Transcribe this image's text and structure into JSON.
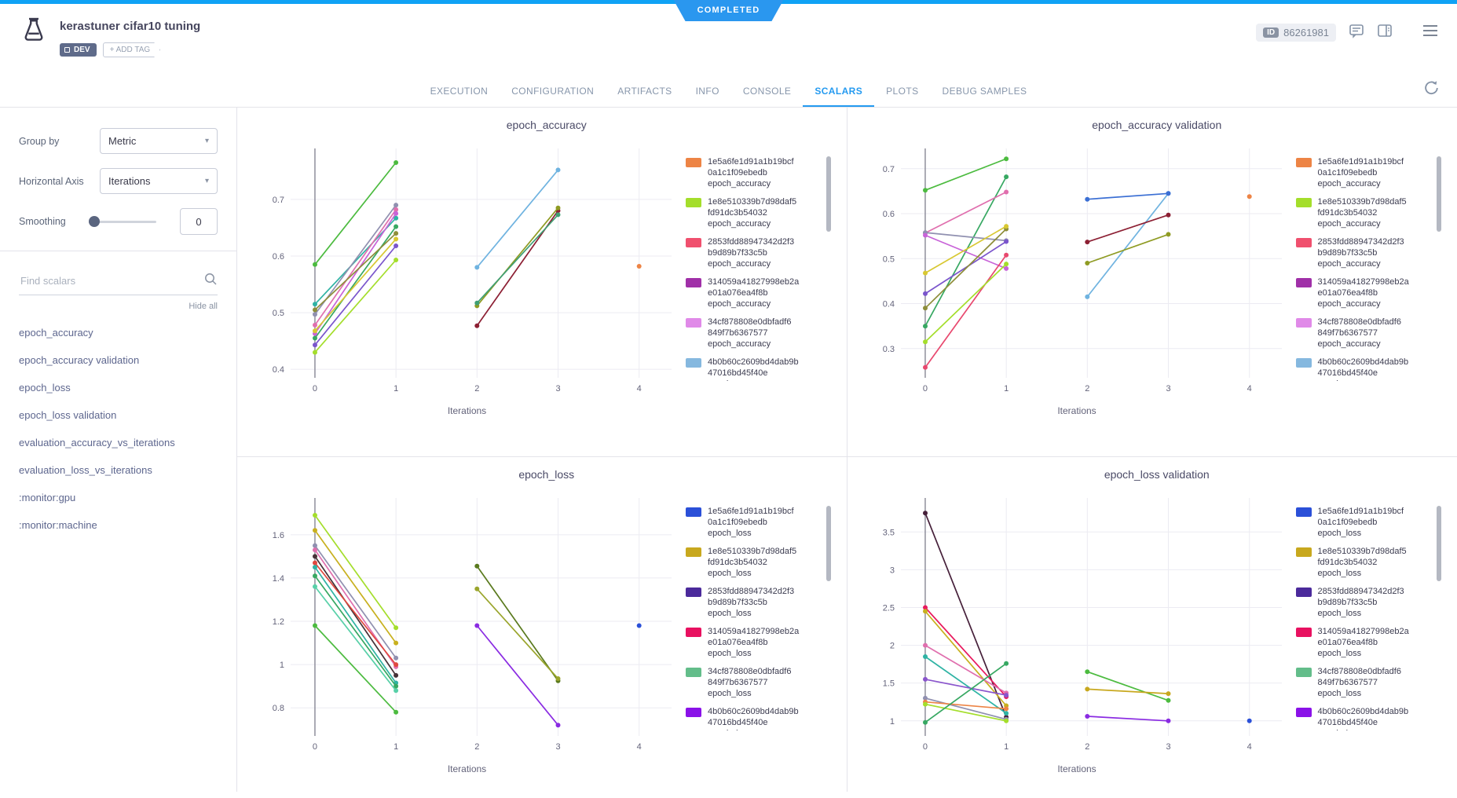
{
  "status_banner": "COMPLETED",
  "header": {
    "title": "kerastuner cifar10 tuning",
    "dev_tag": "DEV",
    "add_tag_label": "+ ADD TAG",
    "id_label": "ID",
    "id_value": "86261981"
  },
  "tabs": [
    {
      "label": "EXECUTION",
      "active": false
    },
    {
      "label": "CONFIGURATION",
      "active": false
    },
    {
      "label": "ARTIFACTS",
      "active": false
    },
    {
      "label": "INFO",
      "active": false
    },
    {
      "label": "CONSOLE",
      "active": false
    },
    {
      "label": "SCALARS",
      "active": true
    },
    {
      "label": "PLOTS",
      "active": false
    },
    {
      "label": "DEBUG SAMPLES",
      "active": false
    }
  ],
  "sidebar": {
    "group_by_label": "Group by",
    "group_by_value": "Metric",
    "horizontal_axis_label": "Horizontal Axis",
    "horizontal_axis_value": "Iterations",
    "smoothing_label": "Smoothing",
    "smoothing_value": "0",
    "search_placeholder": "Find scalars",
    "hide_all_label": "Hide all",
    "metrics": [
      "epoch_accuracy",
      "epoch_accuracy validation",
      "epoch_loss",
      "epoch_loss validation",
      "evaluation_accuracy_vs_iterations",
      "evaluation_loss_vs_iterations",
      ":monitor:gpu",
      ":monitor:machine"
    ]
  },
  "chart_data": [
    {
      "type": "line",
      "title": "epoch_accuracy",
      "xlabel": "Iterations",
      "grid": true,
      "legend_position": "right",
      "xlim": [
        -0.3,
        4.4
      ],
      "ylim": [
        0.385,
        0.79
      ],
      "xticks": [
        0,
        1,
        2,
        3,
        4
      ],
      "yticks": [
        0.4,
        0.5,
        0.6,
        0.7
      ],
      "series": [
        {
          "color": "#4cbb3f",
          "points": [
            [
              0,
              0.585
            ],
            [
              1,
              0.765
            ]
          ]
        },
        {
          "color": "#a4de2b",
          "points": [
            [
              0,
              0.43
            ],
            [
              1,
              0.593
            ]
          ]
        },
        {
          "color": "#37a862",
          "points": [
            [
              0,
              0.455
            ],
            [
              1,
              0.652
            ]
          ]
        },
        {
          "color": "#2fb3a4",
          "points": [
            [
              0,
              0.515
            ],
            [
              1,
              0.667
            ]
          ]
        },
        {
          "color": "#9090b0",
          "points": [
            [
              0,
              0.497
            ],
            [
              1,
              0.69
            ]
          ]
        },
        {
          "color": "#e06fae",
          "points": [
            [
              0,
              0.478
            ],
            [
              1,
              0.682
            ]
          ]
        },
        {
          "color": "#c863d8",
          "points": [
            [
              0,
              0.463
            ],
            [
              1,
              0.675
            ]
          ]
        },
        {
          "color": "#7a55cc",
          "points": [
            [
              0,
              0.443
            ],
            [
              1,
              0.618
            ]
          ]
        },
        {
          "color": "#8e8e3a",
          "points": [
            [
              0,
              0.505
            ],
            [
              1,
              0.64
            ]
          ]
        },
        {
          "color": "#d8c832",
          "points": [
            [
              0,
              0.468
            ],
            [
              1,
              0.63
            ]
          ]
        },
        {
          "color": "#6fb3e0",
          "points": [
            [
              2,
              0.58
            ],
            [
              3,
              0.752
            ]
          ]
        },
        {
          "color": "#8c1f33",
          "points": [
            [
              2,
              0.477
            ],
            [
              3,
              0.68
            ]
          ]
        },
        {
          "color": "#8f9b23",
          "points": [
            [
              2,
              0.512
            ],
            [
              3,
              0.685
            ]
          ]
        },
        {
          "color": "#3f9f74",
          "points": [
            [
              2,
              0.517
            ],
            [
              3,
              0.673
            ]
          ]
        },
        {
          "color": "#ed8445",
          "points": [
            [
              4,
              0.582
            ]
          ]
        }
      ],
      "legend": [
        {
          "color": "#ed8445",
          "lines": [
            "1e5a6fe1d91a1b19bcf",
            "0a1c1f09ebedb",
            "epoch_accuracy"
          ]
        },
        {
          "color": "#a4de2b",
          "lines": [
            "1e8e510339b7d98daf5",
            "fd91dc3b54032",
            "epoch_accuracy"
          ]
        },
        {
          "color": "#f0506e",
          "lines": [
            "2853fdd88947342d2f3",
            "b9d89b7f33c5b",
            "epoch_accuracy"
          ]
        },
        {
          "color": "#a030a8",
          "lines": [
            "314059a41827998eb2a",
            "e01a076ea4f8b",
            "epoch_accuracy"
          ]
        },
        {
          "color": "#e08ae8",
          "lines": [
            "34cf878808e0dbfadf6",
            "849f7b6367577",
            "epoch_accuracy"
          ]
        },
        {
          "color": "#85b8df",
          "lines": [
            "4b0b60c2609bd4dab9b",
            "47016bd45f40e",
            "epoch_accuracy"
          ]
        }
      ]
    },
    {
      "type": "line",
      "title": "epoch_accuracy validation",
      "xlabel": "Iterations",
      "grid": true,
      "legend_position": "right",
      "xlim": [
        -0.3,
        4.4
      ],
      "ylim": [
        0.235,
        0.745
      ],
      "xticks": [
        0,
        1,
        2,
        3,
        4
      ],
      "yticks": [
        0.3,
        0.4,
        0.5,
        0.6,
        0.7
      ],
      "series": [
        {
          "color": "#4cbb3f",
          "points": [
            [
              0,
              0.652
            ],
            [
              1,
              0.722
            ]
          ]
        },
        {
          "color": "#37a862",
          "points": [
            [
              0,
              0.35
            ],
            [
              1,
              0.682
            ]
          ]
        },
        {
          "color": "#e06fae",
          "points": [
            [
              0,
              0.557
            ],
            [
              1,
              0.648
            ]
          ]
        },
        {
          "color": "#9090b0",
          "points": [
            [
              0,
              0.558
            ],
            [
              1,
              0.54
            ]
          ]
        },
        {
          "color": "#c863d8",
          "points": [
            [
              0,
              0.552
            ],
            [
              1,
              0.478
            ]
          ]
        },
        {
          "color": "#7a55cc",
          "points": [
            [
              0,
              0.422
            ],
            [
              1,
              0.538
            ]
          ]
        },
        {
          "color": "#e8486e",
          "points": [
            [
              0,
              0.258
            ],
            [
              1,
              0.508
            ]
          ]
        },
        {
          "color": "#a4de2b",
          "points": [
            [
              0,
              0.315
            ],
            [
              1,
              0.488
            ]
          ]
        },
        {
          "color": "#8e8e3a",
          "points": [
            [
              0,
              0.39
            ],
            [
              1,
              0.566
            ]
          ]
        },
        {
          "color": "#d8c832",
          "points": [
            [
              0,
              0.468
            ],
            [
              1,
              0.572
            ]
          ]
        },
        {
          "color": "#6fb3e0",
          "points": [
            [
              2,
              0.415
            ],
            [
              3,
              0.645
            ]
          ]
        },
        {
          "color": "#8c1f33",
          "points": [
            [
              2,
              0.537
            ],
            [
              3,
              0.597
            ]
          ]
        },
        {
          "color": "#8f9b23",
          "points": [
            [
              2,
              0.49
            ],
            [
              3,
              0.554
            ]
          ]
        },
        {
          "color": "#3b6fd4",
          "points": [
            [
              2,
              0.632
            ],
            [
              3,
              0.645
            ]
          ]
        },
        {
          "color": "#ed8445",
          "points": [
            [
              4,
              0.638
            ]
          ]
        }
      ],
      "legend": [
        {
          "color": "#ed8445",
          "lines": [
            "1e5a6fe1d91a1b19bcf",
            "0a1c1f09ebedb",
            "epoch_accuracy"
          ]
        },
        {
          "color": "#a4de2b",
          "lines": [
            "1e8e510339b7d98daf5",
            "fd91dc3b54032",
            "epoch_accuracy"
          ]
        },
        {
          "color": "#f0506e",
          "lines": [
            "2853fdd88947342d2f3",
            "b9d89b7f33c5b",
            "epoch_accuracy"
          ]
        },
        {
          "color": "#a030a8",
          "lines": [
            "314059a41827998eb2a",
            "e01a076ea4f8b",
            "epoch_accuracy"
          ]
        },
        {
          "color": "#e08ae8",
          "lines": [
            "34cf878808e0dbfadf6",
            "849f7b6367577",
            "epoch_accuracy"
          ]
        },
        {
          "color": "#85b8df",
          "lines": [
            "4b0b60c2609bd4dab9b",
            "47016bd45f40e",
            "epoch_accuracy"
          ]
        }
      ]
    },
    {
      "type": "line",
      "title": "epoch_loss",
      "xlabel": "Iterations",
      "grid": true,
      "legend_position": "right",
      "xlim": [
        -0.3,
        4.4
      ],
      "ylim": [
        0.67,
        1.77
      ],
      "xticks": [
        0,
        1,
        2,
        3,
        4
      ],
      "yticks": [
        0.8,
        1,
        1.2,
        1.4,
        1.6
      ],
      "series": [
        {
          "color": "#a4de2b",
          "points": [
            [
              0,
              1.69
            ],
            [
              1,
              1.17
            ]
          ]
        },
        {
          "color": "#c8b01e",
          "points": [
            [
              0,
              1.62
            ],
            [
              1,
              1.1
            ]
          ]
        },
        {
          "color": "#9090b0",
          "points": [
            [
              0,
              1.55
            ],
            [
              1,
              1.03
            ]
          ]
        },
        {
          "color": "#e06fae",
          "points": [
            [
              0,
              1.53
            ],
            [
              1,
              0.99
            ]
          ]
        },
        {
          "color": "#463238",
          "points": [
            [
              0,
              1.5
            ],
            [
              1,
              0.95
            ]
          ]
        },
        {
          "color": "#e0483f",
          "points": [
            [
              0,
              1.47
            ],
            [
              1,
              1.0
            ]
          ]
        },
        {
          "color": "#2fb3a4",
          "points": [
            [
              0,
              1.45
            ],
            [
              1,
              0.915
            ]
          ]
        },
        {
          "color": "#37a862",
          "points": [
            [
              0,
              1.41
            ],
            [
              1,
              0.9
            ]
          ]
        },
        {
          "color": "#58d0a8",
          "points": [
            [
              0,
              1.36
            ],
            [
              1,
              0.88
            ]
          ]
        },
        {
          "color": "#4cbb3f",
          "points": [
            [
              0,
              1.18
            ],
            [
              1,
              0.78
            ]
          ]
        },
        {
          "color": "#5a7a1e",
          "points": [
            [
              2,
              1.455
            ],
            [
              3,
              0.925
            ]
          ]
        },
        {
          "color": "#9aa52c",
          "points": [
            [
              2,
              1.35
            ],
            [
              3,
              0.935
            ]
          ]
        },
        {
          "color": "#8a2be2",
          "points": [
            [
              2,
              1.18
            ],
            [
              3,
              0.72
            ]
          ]
        },
        {
          "color": "#2b50d8",
          "points": [
            [
              4,
              1.18
            ]
          ]
        }
      ],
      "legend": [
        {
          "color": "#2b50d8",
          "lines": [
            "1e5a6fe1d91a1b19bcf",
            "0a1c1f09ebedb",
            "epoch_loss"
          ]
        },
        {
          "color": "#c8a81e",
          "lines": [
            "1e8e510339b7d98daf5",
            "fd91dc3b54032",
            "epoch_loss"
          ]
        },
        {
          "color": "#4b2a9b",
          "lines": [
            "2853fdd88947342d2f3",
            "b9d89b7f33c5b",
            "epoch_loss"
          ]
        },
        {
          "color": "#e81160",
          "lines": [
            "314059a41827998eb2a",
            "e01a076ea4f8b",
            "epoch_loss"
          ]
        },
        {
          "color": "#63bd8a",
          "lines": [
            "34cf878808e0dbfadf6",
            "849f7b6367577",
            "epoch_loss"
          ]
        },
        {
          "color": "#8a12e8",
          "lines": [
            "4b0b60c2609bd4dab9b",
            "47016bd45f40e",
            "epoch_loss"
          ]
        }
      ]
    },
    {
      "type": "line",
      "title": "epoch_loss validation",
      "xlabel": "Iterations",
      "grid": true,
      "legend_position": "right",
      "xlim": [
        -0.3,
        4.4
      ],
      "ylim": [
        0.8,
        3.95
      ],
      "xticks": [
        0,
        1,
        2,
        3,
        4
      ],
      "yticks": [
        1,
        1.5,
        2,
        2.5,
        3,
        3.5
      ],
      "series": [
        {
          "color": "#46203a",
          "points": [
            [
              0,
              3.75
            ],
            [
              1,
              1.05
            ]
          ]
        },
        {
          "color": "#e8195e",
          "points": [
            [
              0,
              2.5
            ],
            [
              1,
              1.32
            ]
          ]
        },
        {
          "color": "#c8b01e",
          "points": [
            [
              0,
              2.45
            ],
            [
              1,
              1.2
            ]
          ]
        },
        {
          "color": "#e06fae",
          "points": [
            [
              0,
              2.0
            ],
            [
              1,
              1.37
            ]
          ]
        },
        {
          "color": "#2fb3a4",
          "points": [
            [
              0,
              1.85
            ],
            [
              1,
              1.1
            ]
          ]
        },
        {
          "color": "#8a55cc",
          "points": [
            [
              0,
              1.55
            ],
            [
              1,
              1.34
            ]
          ]
        },
        {
          "color": "#9090b0",
          "points": [
            [
              0,
              1.3
            ],
            [
              1,
              1.02
            ]
          ]
        },
        {
          "color": "#ed8445",
          "points": [
            [
              0,
              1.25
            ],
            [
              1,
              1.16
            ]
          ]
        },
        {
          "color": "#a4de2b",
          "points": [
            [
              0,
              1.22
            ],
            [
              1,
              1.0
            ]
          ]
        },
        {
          "color": "#37a862",
          "points": [
            [
              0,
              0.98
            ],
            [
              1,
              1.76
            ]
          ]
        },
        {
          "color": "#4cbb3f",
          "points": [
            [
              2,
              1.65
            ],
            [
              3,
              1.27
            ]
          ]
        },
        {
          "color": "#c8a81e",
          "points": [
            [
              2,
              1.42
            ],
            [
              3,
              1.36
            ]
          ]
        },
        {
          "color": "#8a2be2",
          "points": [
            [
              2,
              1.06
            ],
            [
              3,
              1.0
            ]
          ]
        },
        {
          "color": "#2b50d8",
          "points": [
            [
              4,
              1.0
            ]
          ]
        }
      ],
      "legend": [
        {
          "color": "#2b50d8",
          "lines": [
            "1e5a6fe1d91a1b19bcf",
            "0a1c1f09ebedb",
            "epoch_loss"
          ]
        },
        {
          "color": "#c8a81e",
          "lines": [
            "1e8e510339b7d98daf5",
            "fd91dc3b54032",
            "epoch_loss"
          ]
        },
        {
          "color": "#4b2a9b",
          "lines": [
            "2853fdd88947342d2f3",
            "b9d89b7f33c5b",
            "epoch_loss"
          ]
        },
        {
          "color": "#e81160",
          "lines": [
            "314059a41827998eb2a",
            "e01a076ea4f8b",
            "epoch_loss"
          ]
        },
        {
          "color": "#63bd8a",
          "lines": [
            "34cf878808e0dbfadf6",
            "849f7b6367577",
            "epoch_loss"
          ]
        },
        {
          "color": "#8a12e8",
          "lines": [
            "4b0b60c2609bd4dab9b",
            "47016bd45f40e",
            "epoch_loss"
          ]
        }
      ]
    }
  ]
}
